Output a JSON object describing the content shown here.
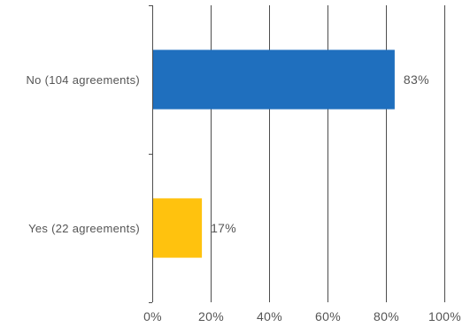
{
  "chart_data": {
    "type": "bar",
    "orientation": "horizontal",
    "categories": [
      "No (104 agreements)",
      "Yes (22 agreements)"
    ],
    "values": [
      83,
      17
    ],
    "data_labels": [
      "83%",
      "17%"
    ],
    "colors": [
      "#1f6fbe",
      "#ffc20e"
    ],
    "xlim": [
      0,
      100
    ],
    "x_ticks": [
      0,
      20,
      40,
      60,
      80,
      100
    ],
    "x_tick_labels": [
      "0%",
      "20%",
      "40%",
      "60%",
      "80%",
      "100%"
    ],
    "grid": true,
    "legend": "none",
    "title": "",
    "xlabel": "",
    "ylabel": ""
  }
}
